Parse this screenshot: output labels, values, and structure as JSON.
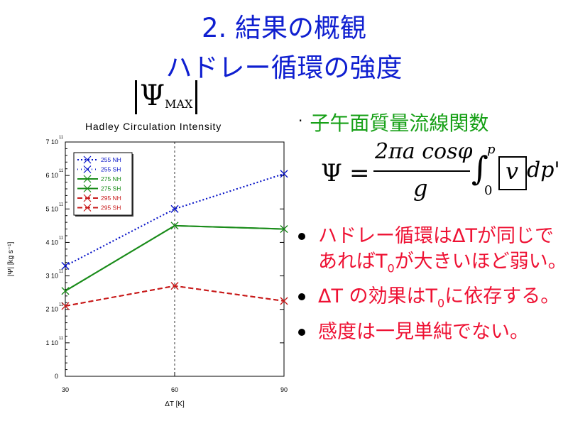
{
  "slide": {
    "title_line1": "2. 結果の概観",
    "title_line2": "ハドレー循環の強度",
    "psi_max_symbol": "Ψ",
    "psi_max_sub": "MAX",
    "right_heading": "子午面質量流線関数",
    "formula": {
      "lhs": "Ψ",
      "equals": "=",
      "numerator": "2πa cosφ",
      "denominator": "g",
      "integral_upper": "p",
      "integral_lower": "0",
      "integrand": "v",
      "differential": "dp'"
    },
    "bullets": [
      {
        "pre": "ハドレー循環はΔTが同じであればT",
        "sub": "0",
        "post": "が大きいほど弱い。"
      },
      {
        "pre": "ΔT の効果はT",
        "sub": "0",
        "post": "に依存する。"
      },
      {
        "pre": " 感度は一見単純でない。",
        "sub": "",
        "post": ""
      }
    ]
  },
  "chart_data": {
    "type": "line",
    "title": "Hadley Circulation Intensity",
    "xlabel": "ΔT [K]",
    "ylabel": "|Ψ| [kg s⁻¹]",
    "x": [
      30,
      60,
      90
    ],
    "x_ticks": [
      "30",
      "60",
      "90"
    ],
    "xlim": [
      30,
      90
    ],
    "ylim": [
      0,
      700000000000.0
    ],
    "y_ticks": [
      {
        "mant": "0",
        "exp": ""
      },
      {
        "mant": "1 10",
        "exp": "11"
      },
      {
        "mant": "2 10",
        "exp": "11"
      },
      {
        "mant": "3 10",
        "exp": "11"
      },
      {
        "mant": "4 10",
        "exp": "11"
      },
      {
        "mant": "5 10",
        "exp": "11"
      },
      {
        "mant": "6 10",
        "exp": "11"
      },
      {
        "mant": "7 10",
        "exp": "11"
      }
    ],
    "legend_position": "top-left",
    "series": [
      {
        "name": "255 NH",
        "values": [
          330000000000.0,
          500000000000.0,
          605000000000.0
        ],
        "color": "#0a16c8",
        "dash": "2,3"
      },
      {
        "name": "255 SH",
        "values": [
          330000000000.0,
          500000000000.0,
          605000000000.0
        ],
        "color": "#0a16c8",
        "dash": "1,4"
      },
      {
        "name": "275 NH",
        "values": [
          255000000000.0,
          450000000000.0,
          440000000000.0
        ],
        "color": "#1a8c1a",
        "dash": ""
      },
      {
        "name": "275 SH",
        "values": [
          255000000000.0,
          450000000000.0,
          440000000000.0
        ],
        "color": "#1a8c1a",
        "dash": ""
      },
      {
        "name": "295 NH",
        "values": [
          210000000000.0,
          270000000000.0,
          225000000000.0
        ],
        "color": "#c81a1a",
        "dash": "7,4"
      },
      {
        "name": "295 SH",
        "values": [
          210000000000.0,
          270000000000.0,
          225000000000.0
        ],
        "color": "#c81a1a",
        "dash": "7,4"
      }
    ]
  }
}
